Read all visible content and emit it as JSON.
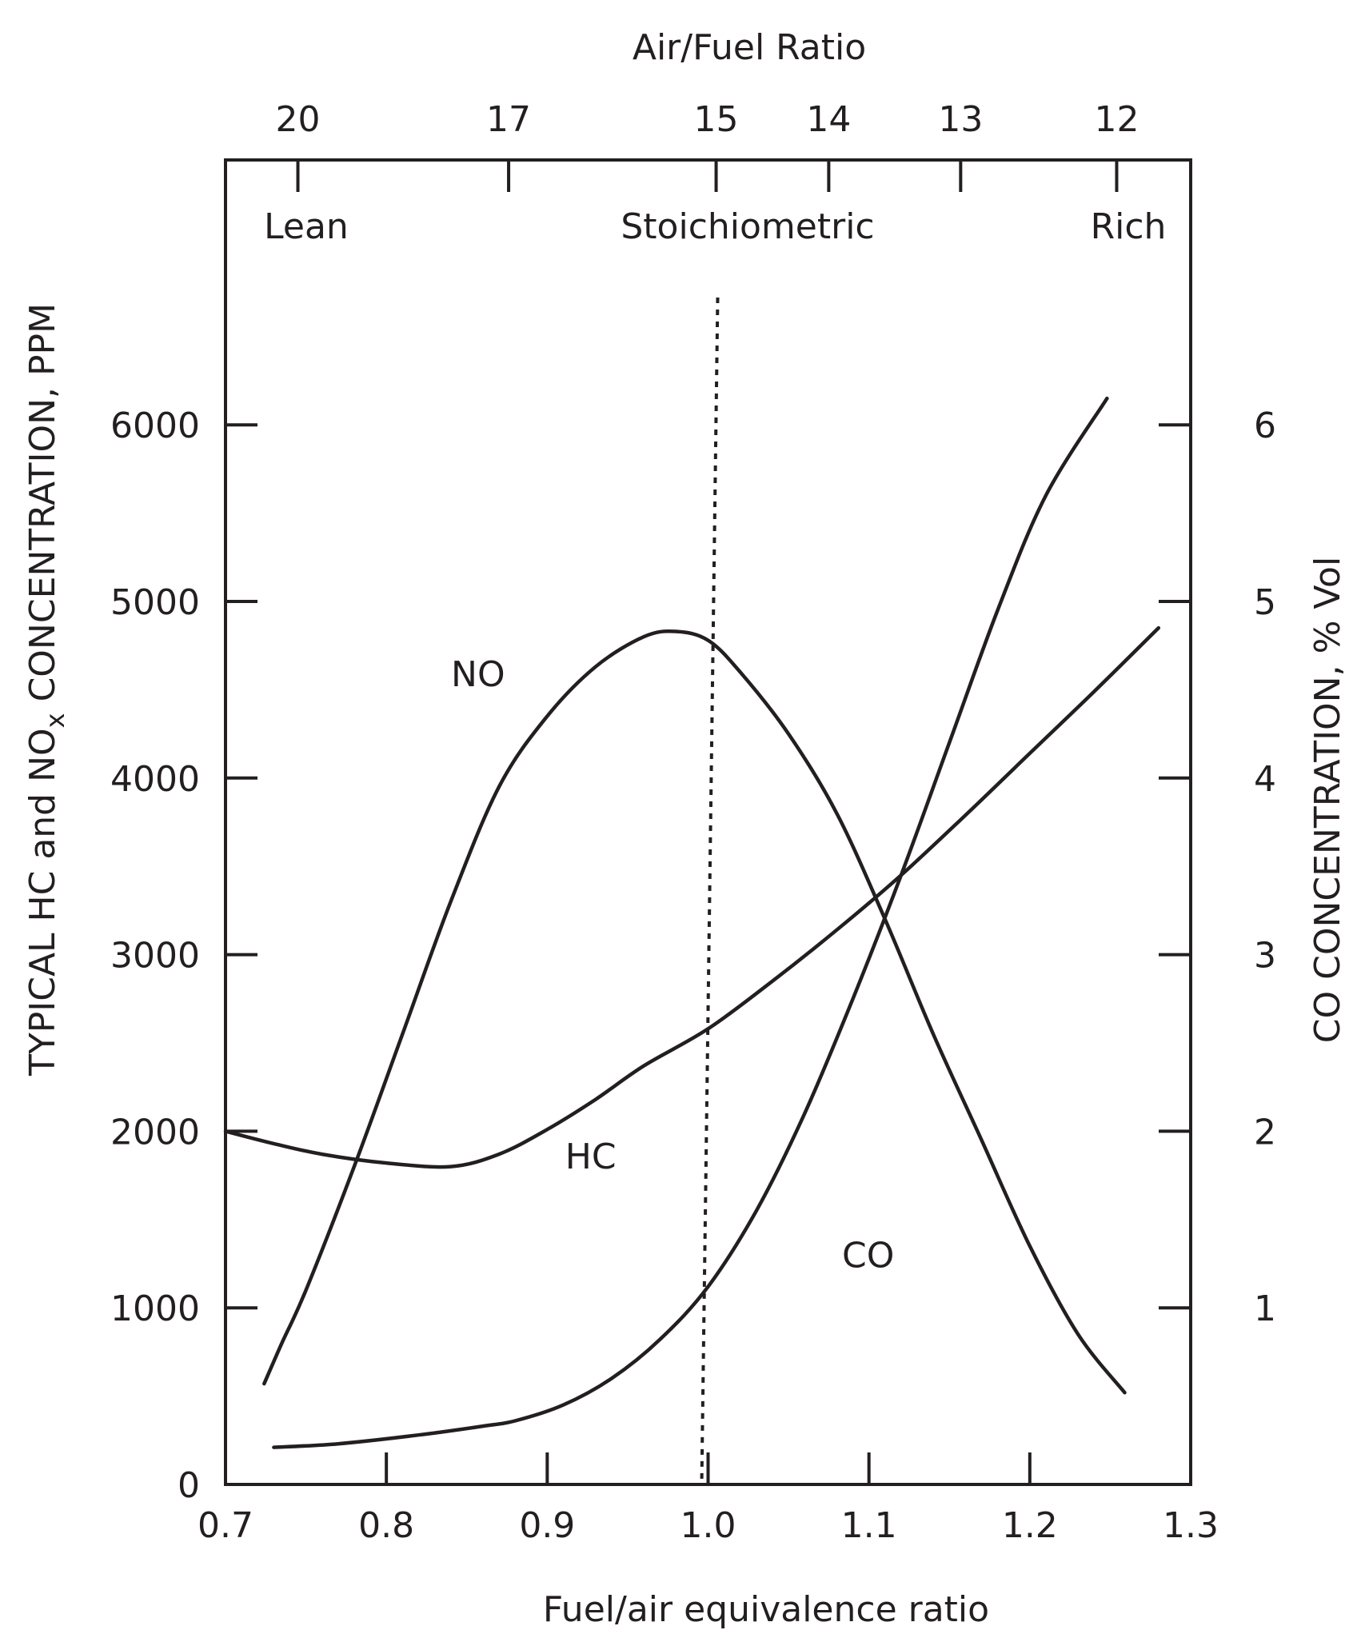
{
  "chart_data": {
    "type": "line",
    "title": "",
    "xlabel": "Fuel/air equivalence ratio",
    "xlim": [
      0.7,
      1.3
    ],
    "x_ticks": [
      0.7,
      0.8,
      0.9,
      1.0,
      1.1,
      1.2,
      1.3
    ],
    "x_tick_labels": [
      "0.7",
      "0.8",
      "0.9",
      "1.0",
      "1.1",
      "1.2",
      "1.3"
    ],
    "ylabel_left": "TYPICAL HC and NO",
    "ylabel_left_subscript": "x",
    "ylabel_left_suffix": " CONCENTRATION, PPM",
    "ylim_left": [
      0,
      7500
    ],
    "y_left_ticks": [
      0,
      1000,
      2000,
      3000,
      4000,
      5000,
      6000
    ],
    "y_left_tick_labels": [
      "0",
      "1000",
      "2000",
      "3000",
      "4000",
      "5000",
      "6000"
    ],
    "ylabel_right": "CO CONCENTRATION, % Vol",
    "ylim_right": [
      0,
      7.5
    ],
    "y_right_ticks": [
      1,
      2,
      3,
      4,
      5,
      6
    ],
    "y_right_tick_labels": [
      "1",
      "2",
      "3",
      "4",
      "5",
      "6"
    ],
    "top_axis": {
      "label": "Air/Fuel Ratio",
      "ticks": [
        {
          "phi": 0.745,
          "label": "20"
        },
        {
          "phi": 0.876,
          "label": "17"
        },
        {
          "phi": 1.005,
          "label": "15"
        },
        {
          "phi": 1.075,
          "label": "14"
        },
        {
          "phi": 1.157,
          "label": "13"
        },
        {
          "phi": 1.254,
          "label": "12"
        }
      ]
    },
    "regions": [
      "Lean",
      "Stoichiometric",
      "Rich"
    ],
    "stoichiometric_phi": 1.0,
    "series": [
      {
        "name": "NO",
        "axis": "left",
        "label_at": [
          0.857,
          4520
        ],
        "points": [
          [
            0.724,
            570
          ],
          [
            0.735,
            800
          ],
          [
            0.75,
            1100
          ],
          [
            0.78,
            1800
          ],
          [
            0.81,
            2550
          ],
          [
            0.84,
            3300
          ],
          [
            0.87,
            3950
          ],
          [
            0.9,
            4350
          ],
          [
            0.93,
            4630
          ],
          [
            0.96,
            4800
          ],
          [
            0.98,
            4830
          ],
          [
            1.0,
            4780
          ],
          [
            1.02,
            4600
          ],
          [
            1.05,
            4250
          ],
          [
            1.08,
            3800
          ],
          [
            1.11,
            3200
          ],
          [
            1.14,
            2550
          ],
          [
            1.17,
            1950
          ],
          [
            1.2,
            1350
          ],
          [
            1.23,
            850
          ],
          [
            1.259,
            520
          ]
        ]
      },
      {
        "name": "HC",
        "axis": "left",
        "label_at": [
          0.927,
          1790
        ],
        "points": [
          [
            0.7,
            2000
          ],
          [
            0.73,
            1930
          ],
          [
            0.76,
            1870
          ],
          [
            0.8,
            1820
          ],
          [
            0.84,
            1800
          ],
          [
            0.87,
            1870
          ],
          [
            0.9,
            2010
          ],
          [
            0.93,
            2180
          ],
          [
            0.96,
            2370
          ],
          [
            1.0,
            2580
          ],
          [
            1.04,
            2850
          ],
          [
            1.08,
            3140
          ],
          [
            1.12,
            3450
          ],
          [
            1.16,
            3790
          ],
          [
            1.2,
            4140
          ],
          [
            1.24,
            4490
          ],
          [
            1.28,
            4850
          ]
        ]
      },
      {
        "name": "CO",
        "axis": "right",
        "label_at": [
          1.0995,
          1.23
        ],
        "points": [
          [
            0.73,
            0.21
          ],
          [
            0.77,
            0.23
          ],
          [
            0.82,
            0.28
          ],
          [
            0.86,
            0.33
          ],
          [
            0.88,
            0.36
          ],
          [
            0.91,
            0.45
          ],
          [
            0.94,
            0.6
          ],
          [
            0.97,
            0.82
          ],
          [
            1.0,
            1.12
          ],
          [
            1.03,
            1.55
          ],
          [
            1.06,
            2.1
          ],
          [
            1.09,
            2.75
          ],
          [
            1.12,
            3.45
          ],
          [
            1.15,
            4.2
          ],
          [
            1.18,
            4.95
          ],
          [
            1.21,
            5.6
          ],
          [
            1.248,
            6.15
          ]
        ]
      }
    ]
  }
}
